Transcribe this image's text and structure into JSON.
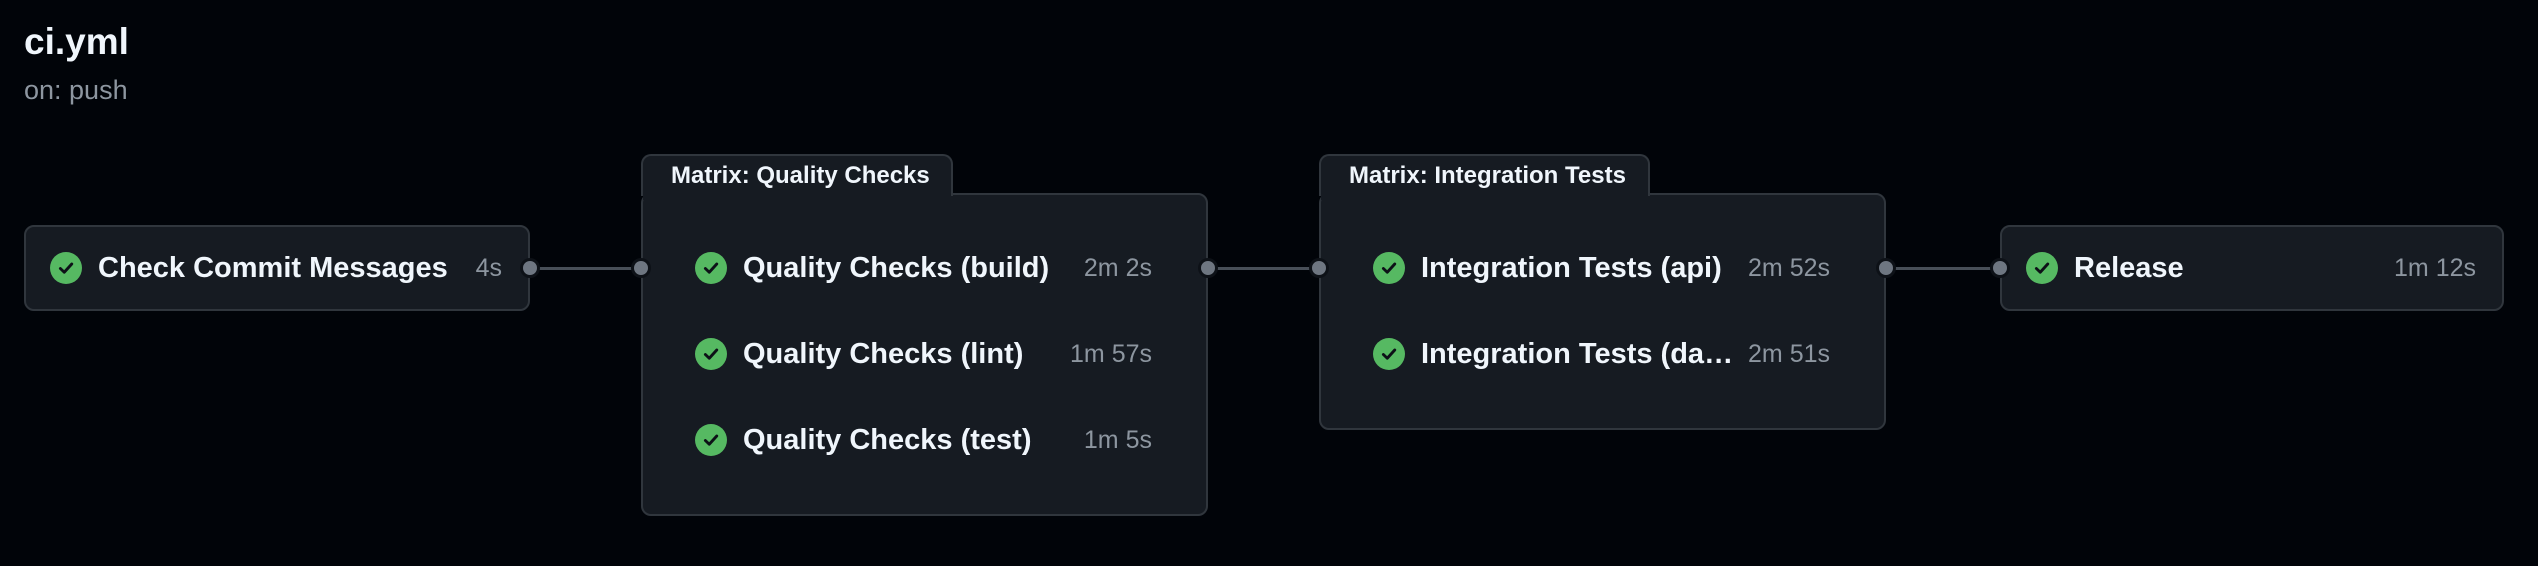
{
  "workflow": {
    "title": "ci.yml",
    "trigger": "on: push"
  },
  "colors": {
    "background": "#010409",
    "card": "#161b22",
    "border": "#30363d",
    "success": "#56b962",
    "muted_text": "#8d96a0"
  },
  "jobs": {
    "check_commit": {
      "name": "Check Commit Messages",
      "duration": "4s",
      "status": "success",
      "icon": "check-circle-icon"
    },
    "release": {
      "name": "Release",
      "duration": "1m 12s",
      "status": "success",
      "icon": "check-circle-icon"
    }
  },
  "groups": {
    "quality": {
      "label": "Matrix: Quality Checks",
      "jobs": [
        {
          "name": "Quality Checks (build)",
          "duration": "2m 2s",
          "status": "success"
        },
        {
          "name": "Quality Checks (lint)",
          "duration": "1m 57s",
          "status": "success"
        },
        {
          "name": "Quality Checks (test)",
          "duration": "1m 5s",
          "status": "success"
        }
      ]
    },
    "integration": {
      "label": "Matrix: Integration Tests",
      "jobs": [
        {
          "name": "Integration Tests (api)",
          "duration": "2m 52s",
          "status": "success"
        },
        {
          "name": "Integration Tests (dash…",
          "duration": "2m 51s",
          "status": "success"
        }
      ]
    }
  }
}
